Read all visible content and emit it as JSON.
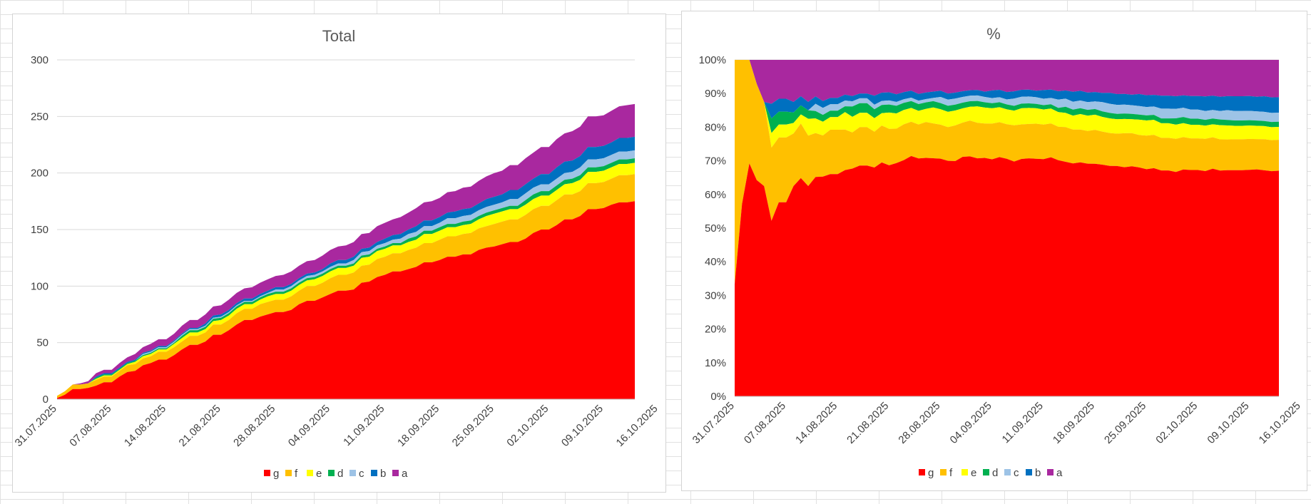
{
  "chart_data": [
    {
      "type": "area",
      "stacked": true,
      "title": "Total",
      "x_tick_labels": [
        "31.07.2025",
        "07.08.2025",
        "14.08.2025",
        "21.08.2025",
        "28.08.2025",
        "04.09.2025",
        "11.09.2025",
        "18.09.2025",
        "25.09.2025",
        "02.10.2025",
        "09.10.2025",
        "16.10.2025"
      ],
      "y_tick_labels": [
        "0",
        "50",
        "100",
        "150",
        "200",
        "250",
        "300"
      ],
      "ylim": [
        0,
        300
      ],
      "grid": true,
      "legend_position": "bottom",
      "colors": [
        "#ff0000",
        "#ffc000",
        "#ffff00",
        "#00b050",
        "#9dc3e6",
        "#0070c0",
        "#a9289f"
      ],
      "series": [
        {
          "name": "g",
          "values": [
            1,
            4,
            9,
            9,
            10,
            12,
            15,
            15,
            20,
            24,
            25,
            30,
            32,
            35,
            35,
            39,
            44,
            48,
            48,
            51,
            57,
            57,
            61,
            66,
            70,
            70,
            73,
            75,
            77,
            77,
            79,
            84,
            87,
            87,
            90,
            93,
            96,
            96,
            97,
            103,
            104,
            108,
            110,
            113,
            113,
            115,
            117,
            121,
            121,
            123,
            126,
            126,
            128,
            128,
            132,
            134,
            135,
            137,
            139,
            139,
            142,
            147,
            150,
            150,
            154,
            159,
            159,
            162,
            168,
            168,
            169,
            172,
            174,
            174,
            175
          ]
        },
        {
          "name": "f",
          "values": [
            2,
            3,
            4,
            4,
            4,
            5,
            5,
            5,
            5,
            6,
            6,
            6,
            6,
            7,
            7,
            7,
            7,
            8,
            8,
            8,
            9,
            9,
            9,
            10,
            10,
            10,
            11,
            11,
            11,
            11,
            12,
            12,
            13,
            13,
            13,
            14,
            14,
            14,
            15,
            15,
            15,
            16,
            16,
            16,
            16,
            17,
            17,
            17,
            17,
            18,
            18,
            18,
            18,
            19,
            19,
            19,
            20,
            20,
            20,
            20,
            21,
            21,
            21,
            21,
            22,
            22,
            22,
            22,
            23,
            23,
            23,
            23,
            24,
            24,
            24
          ]
        },
        {
          "name": "e",
          "values": [
            0,
            0,
            0,
            0,
            0,
            1,
            1,
            1,
            1,
            1,
            2,
            2,
            2,
            2,
            2,
            3,
            3,
            3,
            3,
            3,
            3,
            4,
            4,
            4,
            4,
            4,
            4,
            5,
            5,
            5,
            5,
            5,
            5,
            6,
            6,
            6,
            6,
            6,
            6,
            7,
            7,
            7,
            7,
            7,
            7,
            7,
            7,
            8,
            8,
            8,
            8,
            8,
            8,
            8,
            8,
            9,
            9,
            9,
            9,
            9,
            9,
            9,
            9,
            9,
            9,
            9,
            10,
            10,
            10,
            10,
            10,
            10,
            10,
            10,
            10
          ]
        },
        {
          "name": "d",
          "values": [
            0,
            0,
            0,
            0,
            0,
            1,
            1,
            1,
            1,
            1,
            1,
            1,
            1,
            1,
            1,
            1,
            2,
            2,
            2,
            2,
            2,
            2,
            2,
            2,
            2,
            2,
            2,
            2,
            2,
            2,
            2,
            2,
            2,
            2,
            2,
            2,
            2,
            2,
            2,
            2,
            2,
            2,
            2,
            2,
            2,
            3,
            3,
            3,
            3,
            3,
            3,
            3,
            3,
            3,
            3,
            3,
            3,
            3,
            3,
            3,
            4,
            4,
            4,
            4,
            4,
            4,
            4,
            4,
            4,
            4,
            4,
            4,
            4,
            4,
            4
          ]
        },
        {
          "name": "c",
          "values": [
            0,
            0,
            0,
            0,
            0,
            0,
            0,
            0,
            0,
            0,
            0,
            1,
            1,
            1,
            1,
            1,
            1,
            1,
            1,
            1,
            1,
            1,
            1,
            1,
            1,
            1,
            1,
            1,
            2,
            2,
            2,
            2,
            2,
            2,
            2,
            2,
            2,
            2,
            3,
            3,
            3,
            3,
            3,
            3,
            4,
            4,
            4,
            4,
            4,
            4,
            5,
            5,
            5,
            5,
            5,
            5,
            5,
            5,
            6,
            6,
            6,
            6,
            6,
            6,
            6,
            6,
            6,
            7,
            7,
            7,
            7,
            7,
            7,
            7,
            7
          ]
        },
        {
          "name": "b",
          "values": [
            0,
            0,
            0,
            0,
            0,
            1,
            1,
            1,
            1,
            1,
            1,
            1,
            1,
            1,
            1,
            1,
            1,
            1,
            1,
            2,
            2,
            2,
            2,
            2,
            2,
            2,
            2,
            2,
            2,
            2,
            2,
            2,
            2,
            2,
            2,
            3,
            3,
            3,
            3,
            3,
            3,
            3,
            4,
            4,
            4,
            4,
            5,
            5,
            5,
            5,
            5,
            6,
            6,
            6,
            6,
            7,
            7,
            7,
            8,
            8,
            8,
            8,
            9,
            9,
            10,
            10,
            10,
            10,
            11,
            11,
            11,
            11,
            12,
            12,
            12
          ]
        },
        {
          "name": "a",
          "values": [
            0,
            0,
            0,
            1,
            2,
            3,
            3,
            3,
            4,
            4,
            5,
            5,
            6,
            6,
            6,
            6,
            7,
            7,
            7,
            8,
            8,
            8,
            9,
            9,
            9,
            10,
            10,
            10,
            10,
            11,
            11,
            11,
            11,
            11,
            12,
            12,
            12,
            13,
            13,
            13,
            13,
            14,
            14,
            14,
            15,
            15,
            16,
            16,
            17,
            17,
            18,
            18,
            19,
            19,
            20,
            20,
            21,
            21,
            22,
            22,
            23,
            23,
            24,
            24,
            25,
            25,
            26,
            26,
            27,
            27,
            27,
            28,
            28,
            29,
            29
          ]
        }
      ]
    },
    {
      "type": "area",
      "stacked": true,
      "percent": true,
      "title": "%",
      "x_tick_labels": [
        "31.07.2025",
        "07.08.2025",
        "14.08.2025",
        "21.08.2025",
        "28.08.2025",
        "04.09.2025",
        "11.09.2025",
        "18.09.2025",
        "25.09.2025",
        "02.10.2025",
        "09.10.2025",
        "16.10.2025"
      ],
      "y_tick_labels": [
        "0%",
        "10%",
        "20%",
        "30%",
        "40%",
        "50%",
        "60%",
        "70%",
        "80%",
        "90%",
        "100%"
      ],
      "ylim": [
        0,
        100
      ],
      "grid": true,
      "legend_position": "bottom",
      "colors": [
        "#ff0000",
        "#ffc000",
        "#ffff00",
        "#00b050",
        "#9dc3e6",
        "#0070c0",
        "#a9289f"
      ]
    }
  ],
  "legend": [
    {
      "label": "g",
      "color": "#ff0000"
    },
    {
      "label": "f",
      "color": "#ffc000"
    },
    {
      "label": "e",
      "color": "#ffff00"
    },
    {
      "label": "d",
      "color": "#00b050"
    },
    {
      "label": "c",
      "color": "#9dc3e6"
    },
    {
      "label": "b",
      "color": "#0070c0"
    },
    {
      "label": "a",
      "color": "#a9289f"
    }
  ]
}
